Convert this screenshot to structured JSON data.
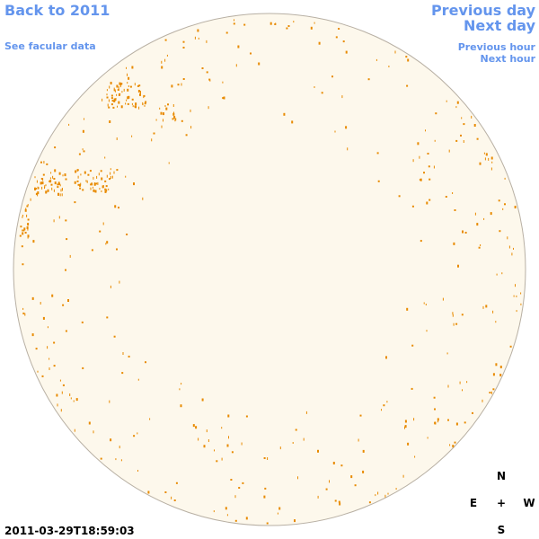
{
  "header": {
    "back_link": "Back to 2011",
    "facular_link": "See facular data"
  },
  "navigation": {
    "previous_day": "Previous day",
    "next_day": "Next day",
    "previous_hour": "Previous hour",
    "next_hour": "Next hour"
  },
  "timestamp": "2011-03-29T18:59:03",
  "compass": {
    "north": "N",
    "east": "E",
    "center": "+",
    "west": "W",
    "south": "S"
  }
}
